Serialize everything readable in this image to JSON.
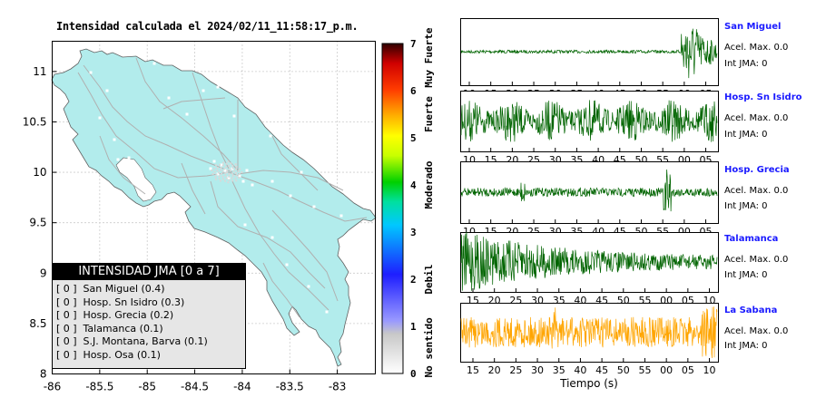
{
  "map": {
    "title": "Intensidad calculada el 2024/02/11_11:58:17_p.m.",
    "xlim": [
      -86,
      -82.6
    ],
    "ylim": [
      8,
      11.3
    ],
    "xticks": [
      -86,
      -85.5,
      -85,
      -84.5,
      -84,
      -83.5,
      -83
    ],
    "xtick_labels": [
      "-86",
      "-85.5",
      "-85",
      "-84.5",
      "-84",
      "-83.5",
      "-83"
    ],
    "yticks": [
      8,
      8.5,
      9,
      9.5,
      10,
      10.5,
      11
    ],
    "ytick_labels": [
      "8",
      "8.5",
      "9",
      "9.5",
      "10",
      "10.5",
      "11"
    ],
    "grid": true,
    "land_color": "#b2ecec",
    "road_color": "#b0b0b0"
  },
  "colorbar": {
    "ticks": [
      "0",
      "1",
      "2",
      "3",
      "4",
      "5",
      "6",
      "7"
    ],
    "labels": [
      "No sentido",
      "Debil",
      "Moderado",
      "Fuerte",
      "Muy Fuerte"
    ]
  },
  "legend": {
    "header": "INTENSIDAD JMA [0 a 7]",
    "rows": [
      {
        "level": "[ 0 ]",
        "text": "San Miguel (0.4)"
      },
      {
        "level": "[ 0 ]",
        "text": "Hosp. Sn Isidro (0.3)"
      },
      {
        "level": "[ 0 ]",
        "text": "Hosp. Grecia (0.2)"
      },
      {
        "level": "[ 0 ]",
        "text": "Talamanca (0.1)"
      },
      {
        "level": "[ 0 ]",
        "text": "S.J. Montana, Barva (0.1)"
      },
      {
        "level": "[ 0 ]",
        "text": "Hosp. Osa (0.1)"
      }
    ]
  },
  "waveforms": {
    "xlabel": "Tiempo (s)",
    "stations": [
      {
        "name": "San Miguel",
        "acel": "Acel. Max. 0.0",
        "jma": "Int JMA: 0",
        "ticks": [
          "10",
          "15",
          "20",
          "25",
          "30",
          "35",
          "40",
          "45",
          "50",
          "55",
          "00",
          "05"
        ],
        "color": "#006400",
        "shape": "late"
      },
      {
        "name": "Hosp. Sn Isidro",
        "acel": "Acel. Max. 0.0",
        "jma": "Int JMA: 0",
        "ticks": [
          "10",
          "15",
          "20",
          "25",
          "30",
          "35",
          "40",
          "45",
          "50",
          "55",
          "00",
          "05"
        ],
        "color": "#006400",
        "shape": "noise"
      },
      {
        "name": "Hosp. Grecia",
        "acel": "Acel. Max. 0.0",
        "jma": "Int JMA: 0",
        "ticks": [
          "10",
          "15",
          "20",
          "25",
          "30",
          "35",
          "40",
          "45",
          "50",
          "55",
          "00",
          "05"
        ],
        "color": "#006400",
        "shape": "spike"
      },
      {
        "name": "Talamanca",
        "acel": "Acel. Max. 0.0",
        "jma": "Int JMA: 0",
        "ticks": [
          "15",
          "20",
          "25",
          "30",
          "35",
          "40",
          "45",
          "50",
          "55",
          "00",
          "05",
          "10"
        ],
        "color": "#006400",
        "shape": "decay"
      },
      {
        "name": "La Sabana",
        "acel": "Acel. Max. 0.0",
        "jma": "Int JMA: 0",
        "ticks": [
          "15",
          "20",
          "25",
          "30",
          "35",
          "40",
          "45",
          "50",
          "55",
          "00",
          "05",
          "10"
        ],
        "color": "#ffa500",
        "shape": "orange"
      }
    ]
  },
  "chart_data": [
    {
      "type": "map",
      "title": "Intensidad calculada el 2024/02/11_11:58:17_p.m.",
      "xlim": [
        -86,
        -82.6
      ],
      "ylim": [
        8,
        11.3
      ],
      "colorbar_range": [
        0,
        7
      ]
    },
    {
      "type": "line",
      "xlabel": "Tiempo (s)",
      "series": [
        {
          "name": "San Miguel"
        },
        {
          "name": "Hosp. Sn Isidro"
        },
        {
          "name": "Hosp. Grecia"
        },
        {
          "name": "Talamanca"
        },
        {
          "name": "La Sabana"
        }
      ]
    }
  ]
}
